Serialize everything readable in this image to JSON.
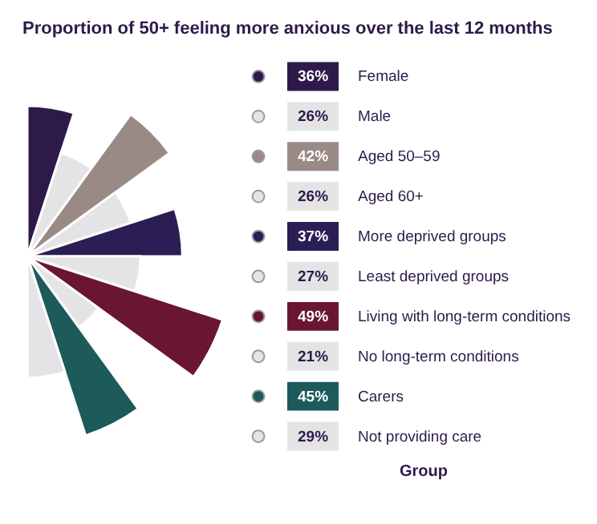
{
  "chart_data": {
    "type": "other",
    "title": "Proportion of 50+ feeling more anxious over the last 12 months",
    "categories": [
      "Female",
      "Male",
      "Aged 50–59",
      "Aged 60+",
      "More deprived groups",
      "Least deprived groups",
      "Living with long-term conditions",
      "No long-term conditions",
      "Carers",
      "Not providing care"
    ],
    "values": [
      36,
      26,
      42,
      26,
      37,
      27,
      49,
      21,
      45,
      29
    ],
    "value_labels": [
      "36%",
      "26%",
      "42%",
      "26%",
      "37%",
      "27%",
      "49%",
      "21%",
      "45%",
      "29%"
    ],
    "colors": [
      "#2d1a4a",
      "#e4e4e6",
      "#9a8a86",
      "#e4e4e6",
      "#2a1e55",
      "#e4e4e6",
      "#6a1531",
      "#e4e4e6",
      "#1d5a5a",
      "#e4e4e6"
    ],
    "legend_title": "Group"
  }
}
